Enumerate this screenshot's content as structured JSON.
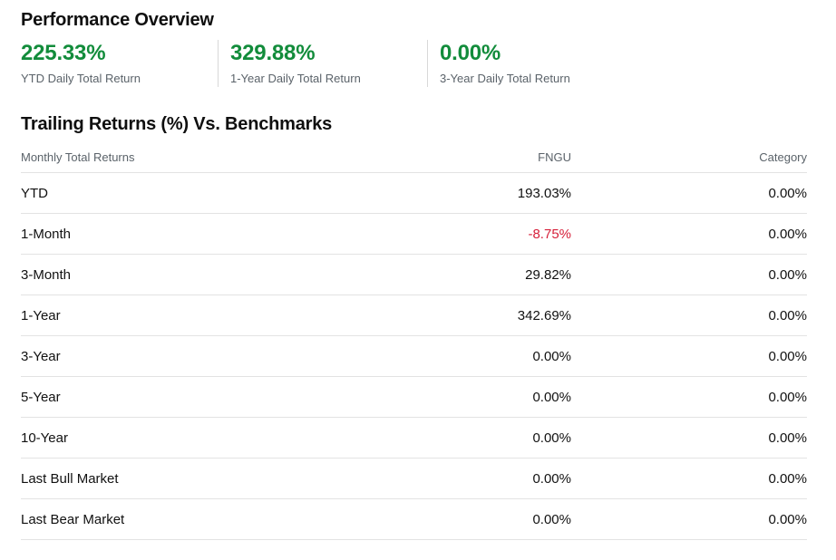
{
  "performance_overview": {
    "title": "Performance Overview",
    "metrics": [
      {
        "value": "225.33%",
        "label": "YTD Daily Total Return"
      },
      {
        "value": "329.88%",
        "label": "1-Year Daily Total Return"
      },
      {
        "value": "0.00%",
        "label": "3-Year Daily Total Return"
      }
    ],
    "positive_color": "#128c3b"
  },
  "trailing_returns": {
    "title": "Trailing Returns (%) Vs. Benchmarks",
    "columns": [
      "Monthly Total Returns",
      "FNGU",
      "Category"
    ],
    "negative_color": "#d6203a",
    "rows": [
      {
        "period": "YTD",
        "fund": "193.03%",
        "category": "0.00%"
      },
      {
        "period": "1-Month",
        "fund": "-8.75%",
        "category": "0.00%"
      },
      {
        "period": "3-Month",
        "fund": "29.82%",
        "category": "0.00%"
      },
      {
        "period": "1-Year",
        "fund": "342.69%",
        "category": "0.00%"
      },
      {
        "period": "3-Year",
        "fund": "0.00%",
        "category": "0.00%"
      },
      {
        "period": "5-Year",
        "fund": "0.00%",
        "category": "0.00%"
      },
      {
        "period": "10-Year",
        "fund": "0.00%",
        "category": "0.00%"
      },
      {
        "period": "Last Bull Market",
        "fund": "0.00%",
        "category": "0.00%"
      },
      {
        "period": "Last Bear Market",
        "fund": "0.00%",
        "category": "0.00%"
      }
    ]
  }
}
